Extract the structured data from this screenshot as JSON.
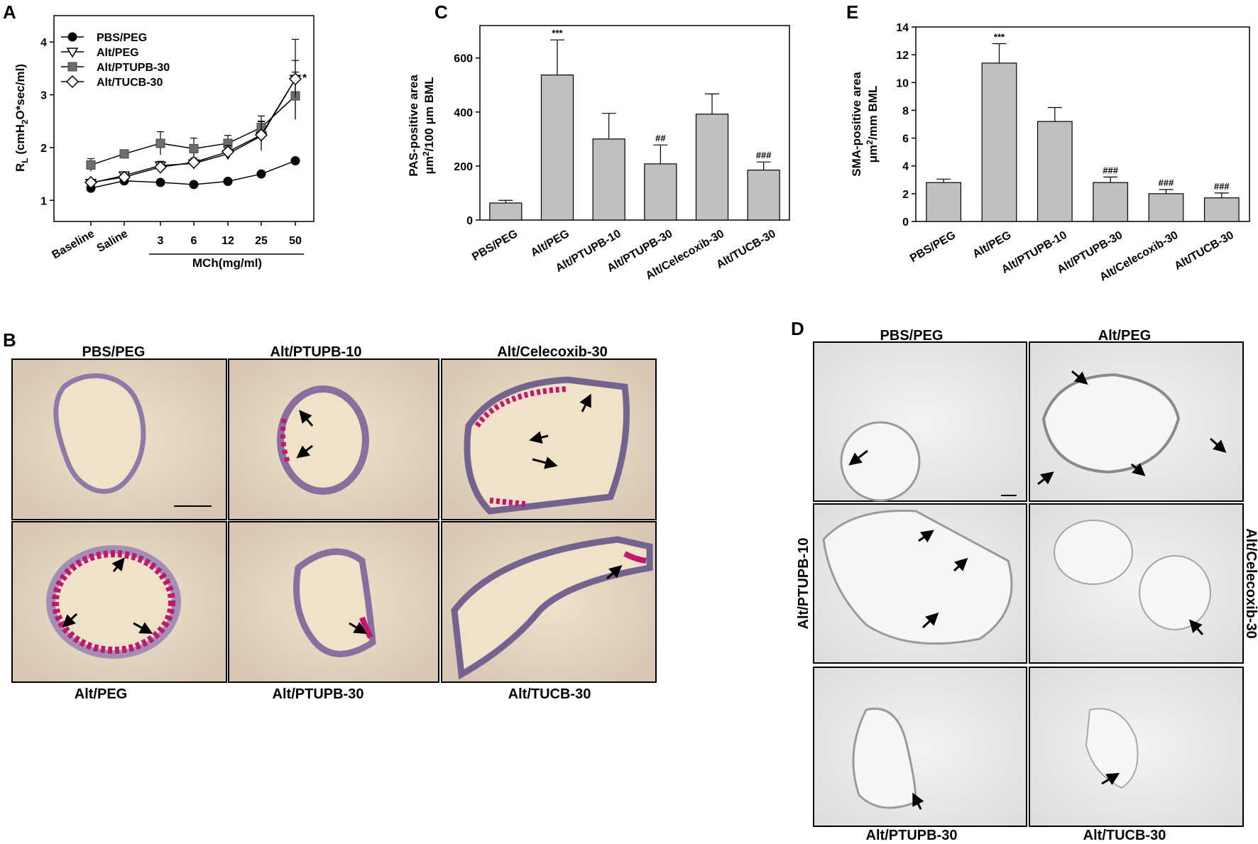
{
  "panels": {
    "A": "A",
    "B": "B",
    "C": "C",
    "D": "D",
    "E": "E"
  },
  "colors": {
    "bar_fill": "#c0c0c0",
    "marker_dark": "#000000",
    "marker_gray": "#6e6e6e",
    "tissue_b": "#e7d9c1",
    "tissue_d": "#eeeeee"
  },
  "chart_data": [
    {
      "id": "A",
      "type": "line",
      "ylabel_main": "R",
      "ylabel_sub": "L",
      "ylabel_rest": " (cmH",
      "ylabel_sub2": "2",
      "ylabel_end": "O*sec/ml)",
      "categories": [
        "Baseline",
        "Saline",
        "3",
        "6",
        "12",
        "25",
        "50"
      ],
      "xgroup_label": "MCh(mg/ml)",
      "ylim": [
        0.6,
        4.5
      ],
      "yticks": [
        "1",
        "2",
        "3",
        "4"
      ],
      "series": [
        {
          "name": "PBS/PEG",
          "marker": "circle-filled",
          "values": [
            1.23,
            1.37,
            1.34,
            1.3,
            1.36,
            1.5,
            1.75
          ],
          "errors": [
            0.05,
            0.05,
            0.05,
            0.03,
            0.03,
            0.04,
            0.05
          ]
        },
        {
          "name": "Alt/PEG",
          "marker": "triangle-open",
          "values": [
            1.33,
            1.47,
            1.66,
            1.7,
            1.88,
            2.22,
            3.3
          ],
          "errors": [
            0.06,
            0.05,
            0.08,
            0.07,
            0.1,
            0.28,
            0.75
          ]
        },
        {
          "name": "Alt/PTUPB-30",
          "marker": "square-gray",
          "values": [
            1.67,
            1.88,
            2.08,
            1.98,
            2.08,
            2.38,
            2.98
          ],
          "errors": [
            0.12,
            0.06,
            0.22,
            0.2,
            0.15,
            0.22,
            0.45
          ]
        },
        {
          "name": "Alt/TUCB-30",
          "marker": "diamond-open",
          "values": [
            1.34,
            1.44,
            1.63,
            1.72,
            1.92,
            2.24,
            3.3
          ],
          "errors": [
            0.05,
            0.05,
            0.1,
            0.08,
            0.12,
            0.25,
            0.35
          ]
        }
      ],
      "annotations": [
        {
          "text": "*",
          "at_index": 6
        }
      ]
    },
    {
      "id": "C",
      "type": "bar",
      "ylabel_line1": "PAS-positive area",
      "ylabel_line2_a": "μm",
      "ylabel_line2_sup": "2",
      "ylabel_line2_b": "/100 μm BML",
      "categories": [
        "PBS/PEG",
        "Alt/PEG",
        "Alt/PTUPB-10",
        "Alt/PTUPB-30",
        "Alt/Celecoxib-30",
        "Alt/TUCB-30"
      ],
      "values": [
        63,
        537,
        300,
        208,
        392,
        185
      ],
      "errors": [
        10,
        130,
        95,
        70,
        75,
        30
      ],
      "marks": [
        "",
        "***",
        "",
        "##",
        "",
        "###"
      ],
      "ylim": [
        0,
        720
      ],
      "yticks": [
        "0",
        "200",
        "400",
        "600"
      ]
    },
    {
      "id": "E",
      "type": "bar",
      "ylabel_line1": "SMA-positive area",
      "ylabel_line2_a": "μm",
      "ylabel_line2_sup": "2",
      "ylabel_line2_b": "/mm BML",
      "categories": [
        "PBS/PEG",
        "Alt/PEG",
        "Alt/PTUPB-10",
        "Alt/PTUPB-30",
        "Alt/Celecoxib-30",
        "Alt/TUCB-30"
      ],
      "values": [
        2.8,
        11.4,
        7.2,
        2.8,
        2.0,
        1.7
      ],
      "errors": [
        0.25,
        1.4,
        1.0,
        0.4,
        0.3,
        0.35
      ],
      "marks": [
        "",
        "***",
        "",
        "###",
        "###",
        "###"
      ],
      "ylim": [
        0,
        14
      ],
      "yticks": [
        "0",
        "2",
        "4",
        "6",
        "8",
        "10",
        "12",
        "14"
      ]
    }
  ],
  "panel_b": {
    "top_labels": [
      "PBS/PEG",
      "Alt/PTUPB-10",
      "Alt/Celecoxib-30"
    ],
    "bottom_labels": [
      "Alt/PEG",
      "Alt/PTUPB-30",
      "Alt/TUCB-30"
    ]
  },
  "panel_d": {
    "top_labels": [
      "PBS/PEG",
      "Alt/PEG"
    ],
    "left_label": "Alt/PTUPB-10",
    "right_label": "Alt/Celecoxib-30",
    "bottom_labels": [
      "Alt/PTUPB-30",
      "Alt/TUCB-30"
    ]
  }
}
